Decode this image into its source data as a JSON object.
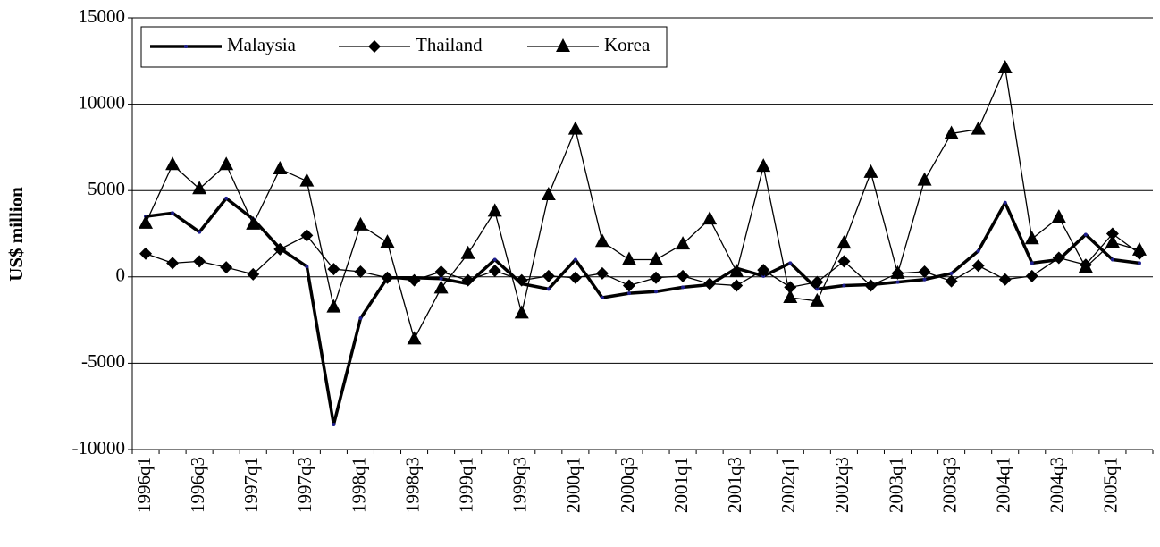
{
  "chart_data": {
    "type": "line",
    "y_label": "US$ million",
    "categories": [
      "1996q1",
      null,
      "1996q3",
      null,
      "1997q1",
      null,
      "1997q3",
      null,
      "1998q1",
      null,
      "1998q3",
      null,
      "1999q1",
      null,
      "1999q3",
      null,
      "2000q1",
      null,
      "2000q3",
      null,
      "2001q1",
      null,
      "2001q3",
      null,
      "2002q1",
      null,
      "2002q3",
      null,
      "2003q1",
      null,
      "2003q3",
      null,
      "2004q1",
      null,
      "2004q3",
      null,
      "2005q1",
      null
    ],
    "series": [
      {
        "name": "Malaysia",
        "color": "#000000",
        "marker": "dot",
        "marker_color": "#1f1f8f",
        "line_width": 3.5,
        "values": [
          3500,
          3700,
          2600,
          4550,
          3350,
          1650,
          600,
          -8550,
          -2400,
          -50,
          -50,
          -100,
          -400,
          1000,
          -400,
          -700,
          1000,
          -1200,
          -950,
          -850,
          -600,
          -450,
          500,
          50,
          800,
          -700,
          -500,
          -450,
          -300,
          -150,
          200,
          1500,
          4300,
          800,
          1000,
          2450,
          1000,
          800
        ]
      },
      {
        "name": "Thailand",
        "color": "#000000",
        "marker": "diamond",
        "marker_color": "#000000",
        "line_width": 1.3,
        "values": [
          1350,
          800,
          900,
          550,
          150,
          1600,
          2400,
          450,
          300,
          -50,
          -200,
          300,
          -200,
          350,
          -200,
          50,
          -50,
          200,
          -500,
          -50,
          50,
          -400,
          -500,
          400,
          -600,
          -300,
          900,
          -500,
          200,
          300,
          -250,
          650,
          -150,
          50,
          1100,
          700,
          2500,
          1350
        ]
      },
      {
        "name": "Korea",
        "color": "#000000",
        "marker": "triangle",
        "marker_color": "#000000",
        "line_width": 1.3,
        "values": [
          3100,
          6500,
          5100,
          6500,
          3050,
          6250,
          5550,
          -1750,
          3000,
          2000,
          -3600,
          -650,
          1350,
          3800,
          -2100,
          4750,
          8550,
          2050,
          1000,
          1000,
          1900,
          3350,
          300,
          6400,
          -1200,
          -1400,
          1950,
          6050,
          200,
          5600,
          8300,
          8550,
          12100,
          2200,
          3450,
          550,
          2000,
          1550
        ]
      }
    ],
    "ylim": [
      -10000,
      15000
    ],
    "yticks": [
      -10000,
      -5000,
      0,
      5000,
      10000,
      15000
    ],
    "grid": true,
    "legend": "top-left"
  }
}
